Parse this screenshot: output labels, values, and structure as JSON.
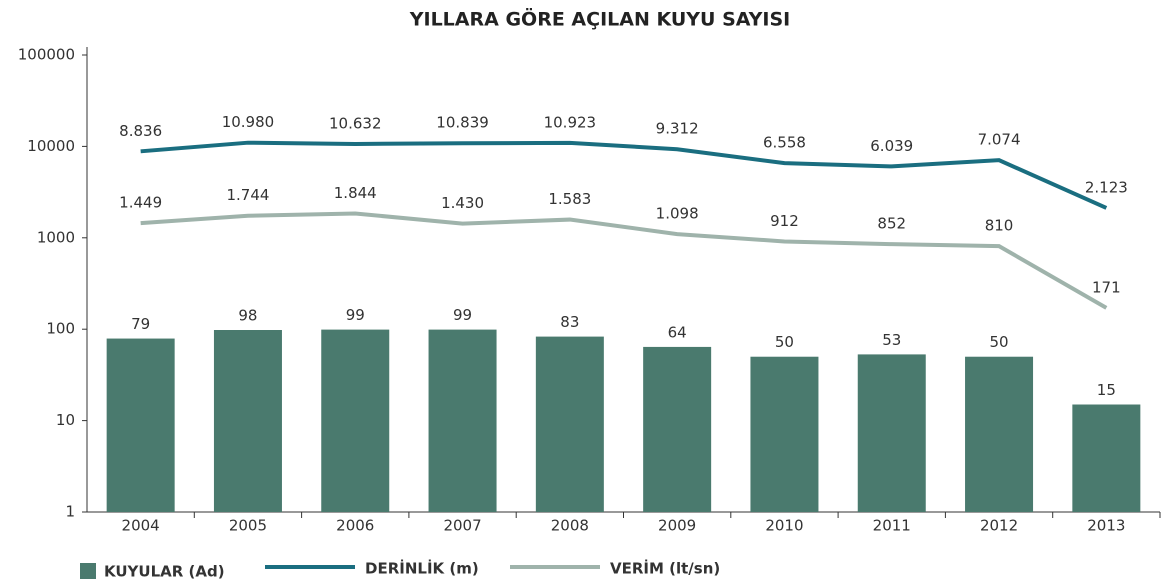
{
  "chart_data": {
    "type": "bar-line",
    "title": "YILLARA GÖRE AÇILAN KUYU SAYISI",
    "categories": [
      "2004",
      "2005",
      "2006",
      "2007",
      "2008",
      "2009",
      "2010",
      "2011",
      "2012",
      "2013"
    ],
    "series": [
      {
        "name": "KUYULAR (Ad)",
        "type": "bar",
        "color": "#4a7a6e",
        "values": [
          79,
          98,
          99,
          99,
          83,
          64,
          50,
          53,
          50,
          15
        ]
      },
      {
        "name": "DERİNLİK (m)",
        "type": "line",
        "color": "#1a6e80",
        "values": [
          8836,
          10980,
          10632,
          10839,
          10923,
          9312,
          6558,
          6039,
          7074,
          2123
        ],
        "value_labels": [
          "8.836",
          "10.980",
          "10.632",
          "10.839",
          "10.923",
          "9.312",
          "6.558",
          "6.039",
          "7.074",
          "2.123"
        ]
      },
      {
        "name": "VERİM (lt/sn)",
        "type": "line",
        "color": "#9fb3ab",
        "values": [
          1449,
          1744,
          1844,
          1430,
          1583,
          1098,
          912,
          852,
          810,
          171
        ],
        "value_labels": [
          "1.449",
          "1.744",
          "1.844",
          "1.430",
          "1.583",
          "1.098",
          "912",
          "852",
          "810",
          "171"
        ]
      }
    ],
    "ylim": [
      1,
      100000
    ],
    "yticks": [
      1,
      10,
      100,
      1000,
      10000,
      100000
    ],
    "log_scale": true
  }
}
